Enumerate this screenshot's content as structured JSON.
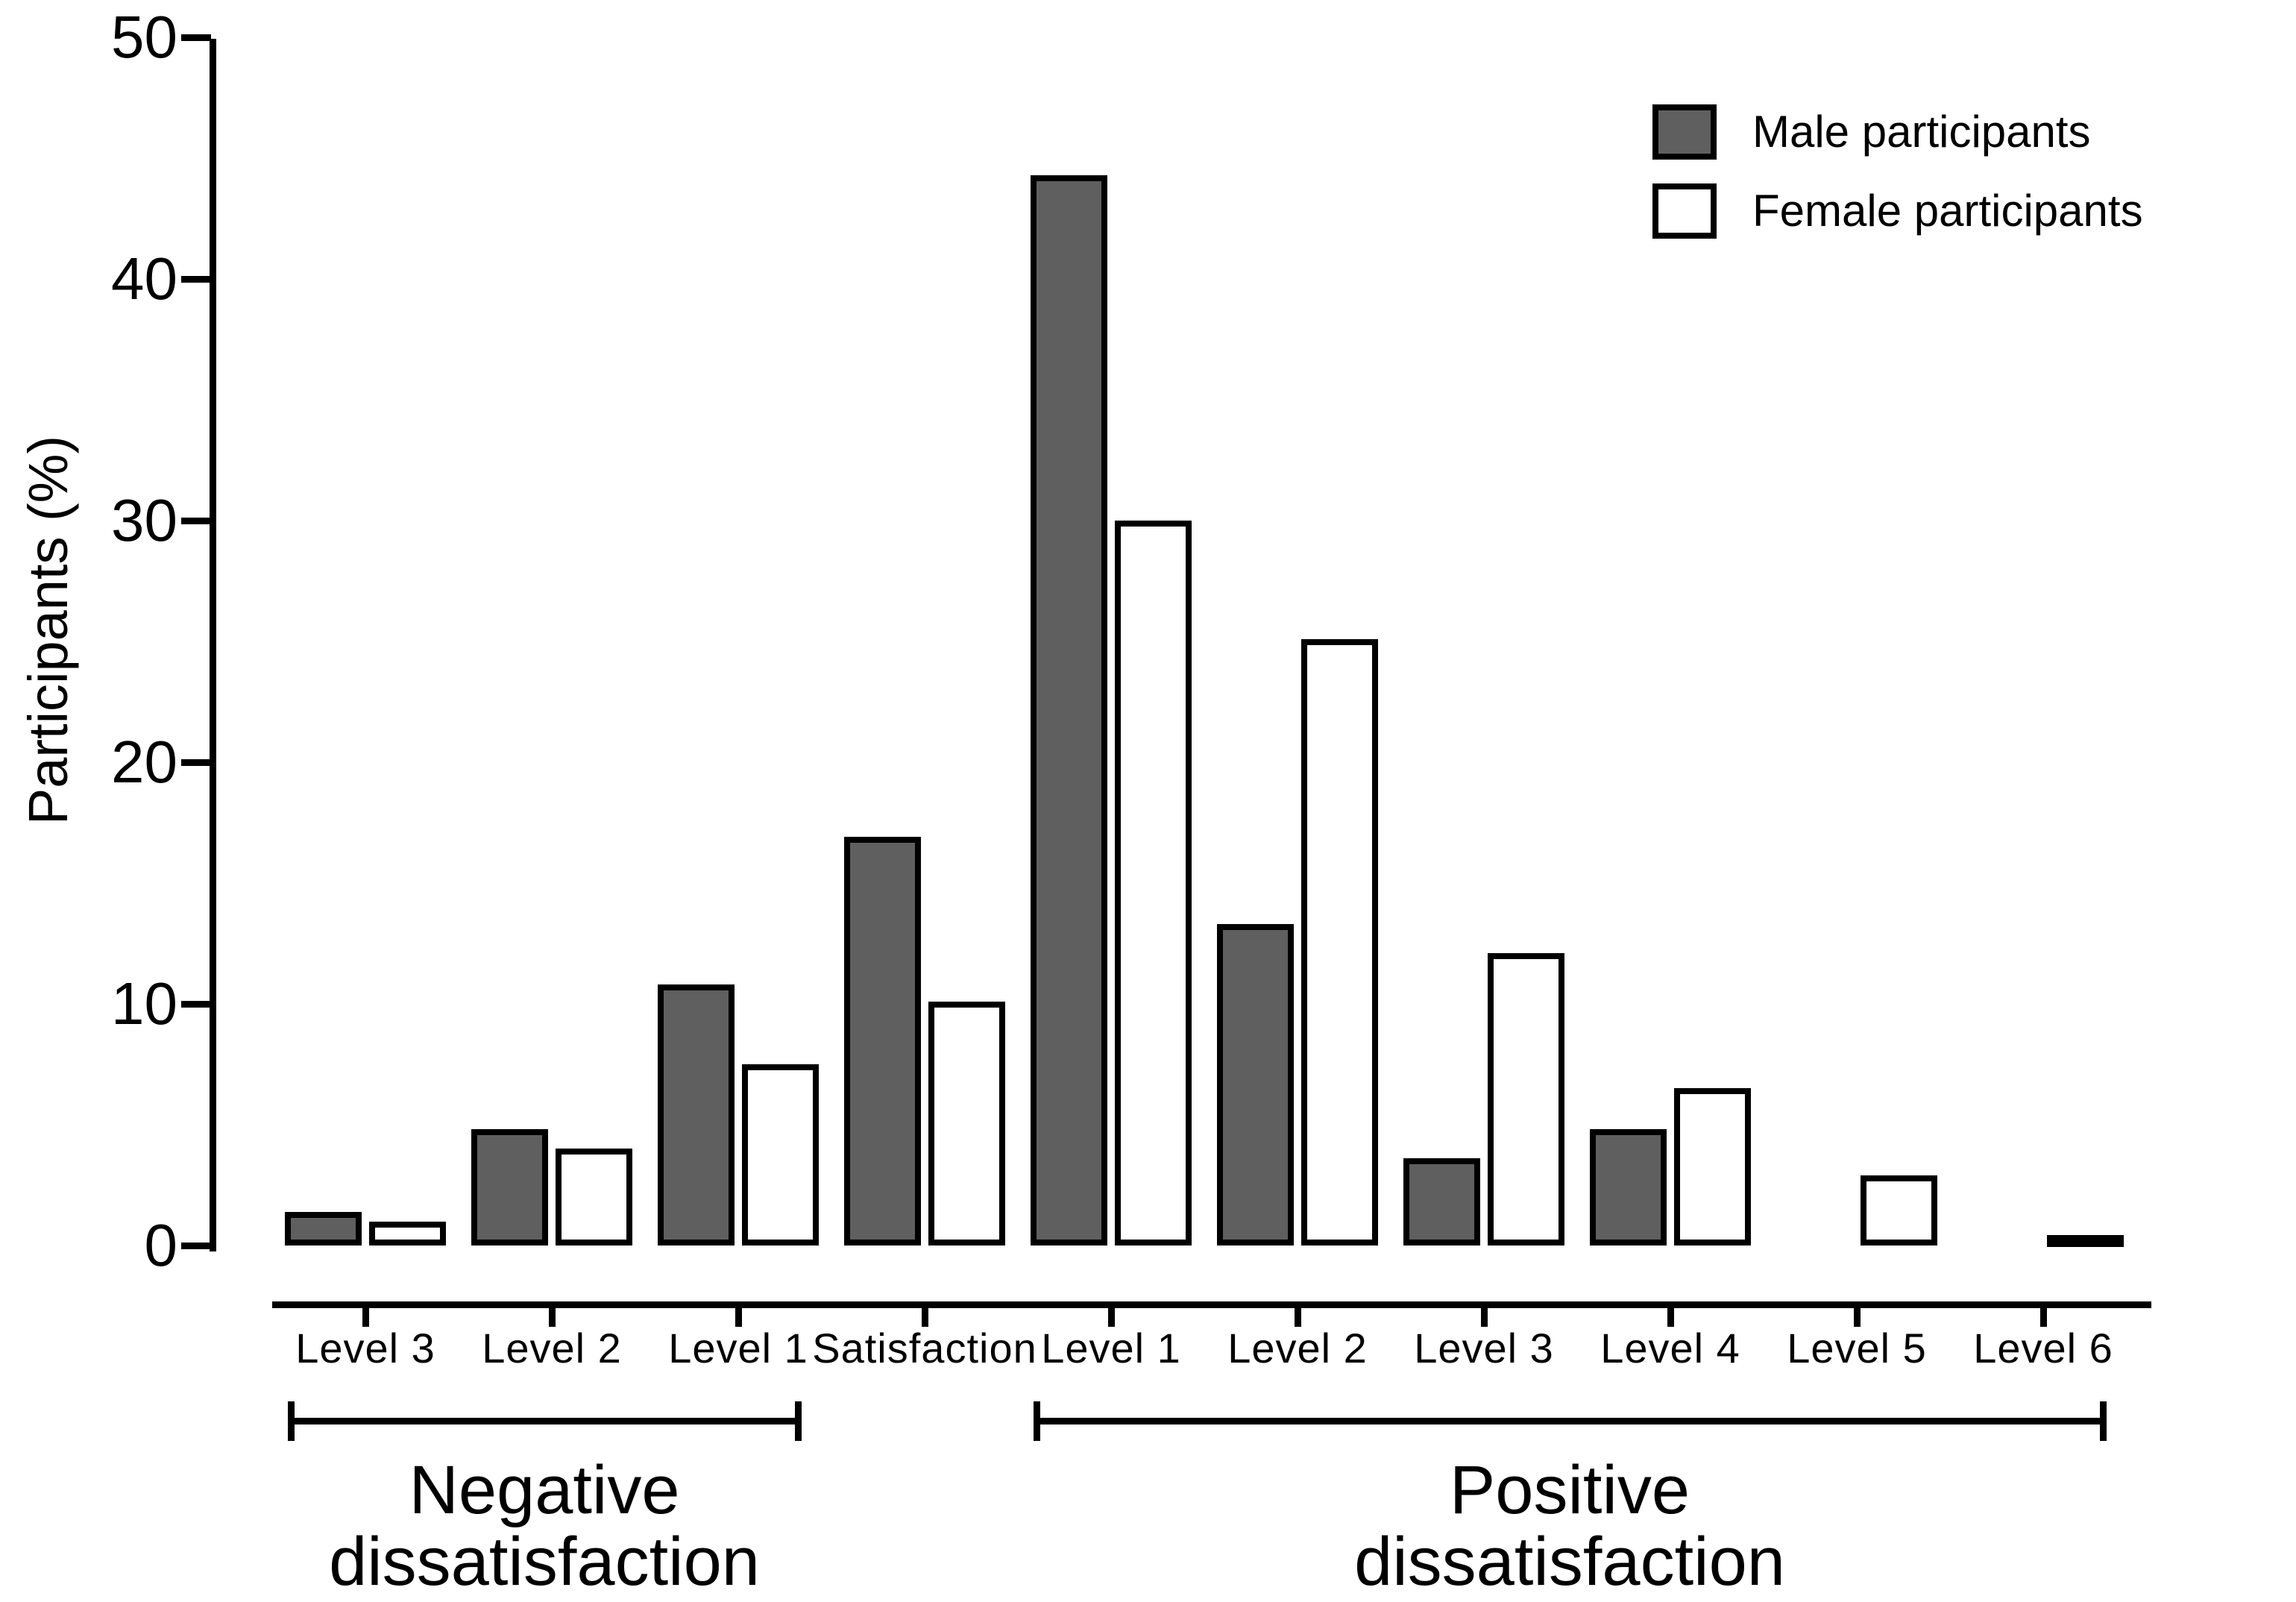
{
  "chart_data": {
    "type": "bar",
    "title": "",
    "xlabel": "",
    "ylabel": "Participants (%)",
    "ylim": [
      0,
      50
    ],
    "yticks": [
      0,
      10,
      20,
      30,
      40,
      50
    ],
    "grid": false,
    "legend_position": "top-right",
    "bar_border_color": "#000000",
    "categories": [
      "Level 3",
      "Level 2",
      "Level 1",
      "Satisfaction",
      "Level 1",
      "Level 2",
      "Level 3",
      "Level 4",
      "Level 5",
      "Level 6"
    ],
    "series": [
      {
        "name": "Male participants",
        "color": "#5f5f5f",
        "values": [
          1.4,
          4.8,
          10.8,
          16.9,
          44.3,
          13.3,
          3.6,
          4.8,
          0,
          0
        ]
      },
      {
        "name": "Female participants",
        "color": "#ffffff",
        "values": [
          1.0,
          4.0,
          7.5,
          10.1,
          30.0,
          25.1,
          12.1,
          6.5,
          2.9,
          0.4
        ]
      }
    ],
    "group_annotations": [
      {
        "label": "Negative dissatisfaction",
        "label_lines": [
          "Negative",
          "dissatisfaction"
        ],
        "from_category_index": 0,
        "to_category_index": 2
      },
      {
        "label": "Positive dissatisfaction",
        "label_lines": [
          "Positive",
          "dissatisfaction"
        ],
        "from_category_index": 4,
        "to_category_index": 9
      }
    ]
  }
}
